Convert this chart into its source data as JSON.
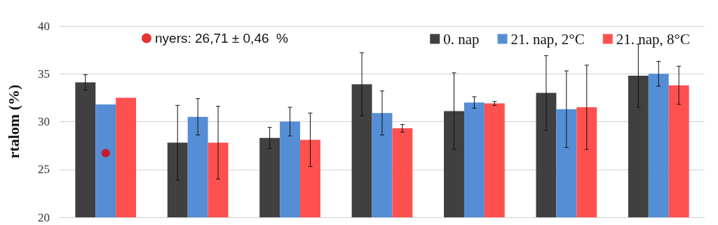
{
  "chart_data": {
    "type": "bar",
    "ylabel": "rtalom (%)",
    "categories": [
      null,
      null,
      null,
      null,
      null,
      null,
      null
    ],
    "series": [
      {
        "name": "0. nap",
        "color": "#404040",
        "values": [
          34.1,
          27.8,
          28.3,
          33.9,
          31.1,
          33.0,
          34.8
        ],
        "errors": [
          0.8,
          3.9,
          1.1,
          3.3,
          4.0,
          3.9,
          3.3
        ]
      },
      {
        "name": "21. nap, 2°C",
        "color": "#558ed5",
        "values": [
          31.8,
          30.5,
          30.0,
          30.9,
          32.0,
          31.3,
          35.0
        ],
        "errors": [
          null,
          1.9,
          1.5,
          2.3,
          0.6,
          4.0,
          1.3
        ]
      },
      {
        "name": "21. nap, 8°C",
        "color": "#ff5050",
        "values": [
          32.5,
          27.8,
          28.1,
          29.3,
          31.9,
          31.5,
          33.8
        ],
        "errors": [
          null,
          3.8,
          2.8,
          0.4,
          0.2,
          4.4,
          2.0
        ]
      },
      {
        "type": "scatter",
        "name": "nyers: 26,71 ± 0,46  %",
        "color": "#e00000",
        "marker": "circle",
        "values": [
          26.71,
          null,
          null,
          null,
          null,
          null,
          null
        ]
      }
    ],
    "ylim": [
      20,
      40
    ],
    "yticks": [
      20,
      25,
      30,
      35,
      40
    ],
    "grid": "y",
    "legend": "top right"
  }
}
